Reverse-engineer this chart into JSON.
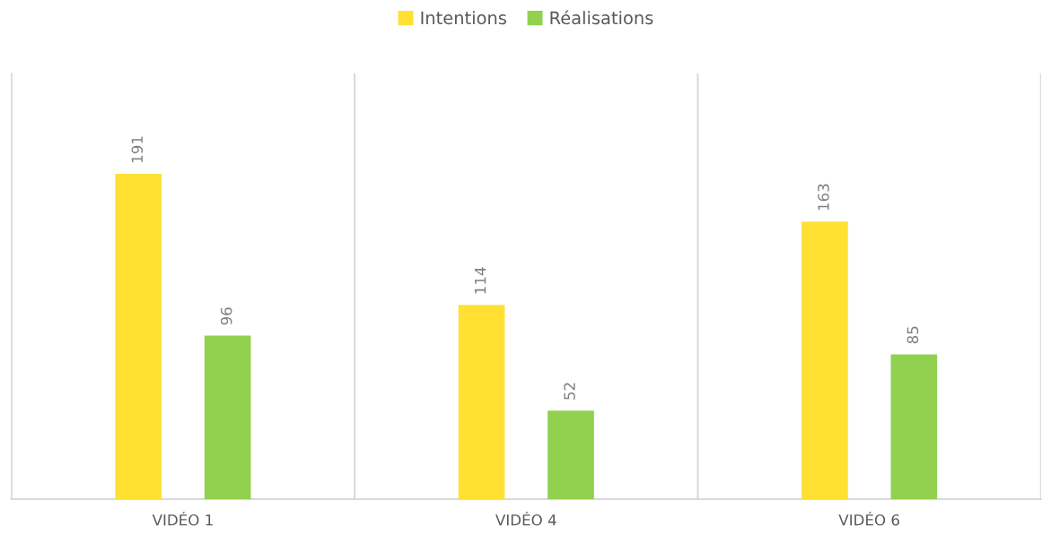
{
  "chart_data": {
    "type": "bar",
    "categories": [
      "VIDÉO 1",
      "VIDÉO 4",
      "VIDÉO 6"
    ],
    "series": [
      {
        "name": "Intentions",
        "color": "#ffe033",
        "values": [
          191,
          114,
          163
        ]
      },
      {
        "name": "Réalisations",
        "color": "#92d050",
        "values": [
          96,
          52,
          85
        ]
      }
    ],
    "ylim": [
      0,
      250
    ],
    "tick_labels": "x",
    "data_labels": true,
    "grid": "x",
    "legend": "top"
  }
}
